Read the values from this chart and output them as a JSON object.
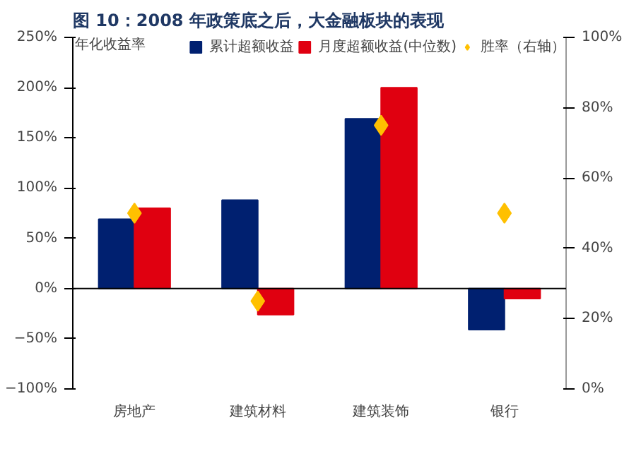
{
  "chart_data": {
    "type": "bar",
    "title": "图 10：2008 年政策底之后，大金融板块的表现",
    "ylabel": "年化收益率",
    "categories": [
      "房地产",
      "建筑材料",
      "建筑装饰",
      "银行"
    ],
    "series": [
      {
        "name": "累计超额收益",
        "color": "#002070",
        "values": [
          69,
          88,
          169,
          -41
        ]
      },
      {
        "name": "月度超额收益(中位数)",
        "color": "#e00010",
        "values": [
          80,
          -26,
          200,
          -10
        ]
      },
      {
        "name": "胜率（右轴）",
        "color": "#ffc000",
        "type": "scatter",
        "axis": "y2",
        "values": [
          50,
          25,
          75,
          50
        ]
      }
    ],
    "marker": "diamond",
    "ylim": [
      -100,
      250
    ],
    "yticks": [
      {
        "value": -100,
        "label": "−100%"
      },
      {
        "value": -50,
        "label": "−50%"
      },
      {
        "value": 0,
        "label": "0%"
      },
      {
        "value": 50,
        "label": "50%"
      },
      {
        "value": 100,
        "label": "100%"
      },
      {
        "value": 150,
        "label": "150%"
      },
      {
        "value": 200,
        "label": "200%"
      },
      {
        "value": 250,
        "label": "250%"
      }
    ],
    "y2lim": [
      0,
      100
    ],
    "y2ticks": [
      {
        "value": 0,
        "label": "0%"
      },
      {
        "value": 20,
        "label": "20%"
      },
      {
        "value": 40,
        "label": "40%"
      },
      {
        "value": 60,
        "label": "60%"
      },
      {
        "value": 80,
        "label": "80%"
      },
      {
        "value": 100,
        "label": "100%"
      }
    ],
    "legend": "top"
  }
}
